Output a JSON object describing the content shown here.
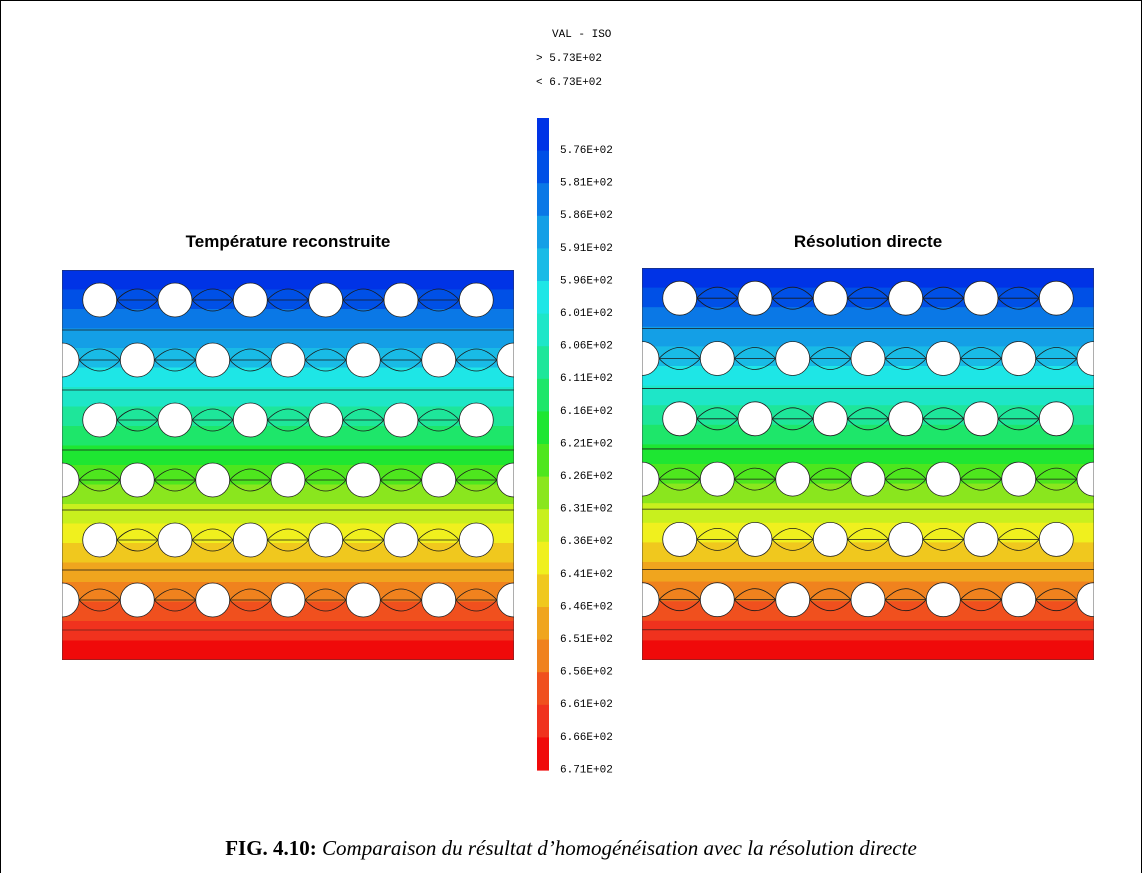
{
  "figure": {
    "left_title": "Température reconstruite",
    "right_title": "Résolution directe",
    "caption_label": "FIG. 4.10:",
    "caption_text": "Comparaison du résultat d’homogénéisation avec la résolution directe"
  },
  "legend": {
    "header": "VAL - ISO",
    "min_line": "> 5.73E+02",
    "max_line": "< 6.73E+02",
    "levels": [
      "5.76E+02",
      "5.81E+02",
      "5.86E+02",
      "5.91E+02",
      "5.96E+02",
      "6.01E+02",
      "6.06E+02",
      "6.11E+02",
      "6.16E+02",
      "6.21E+02",
      "6.26E+02",
      "6.31E+02",
      "6.36E+02",
      "6.41E+02",
      "6.46E+02",
      "6.51E+02",
      "6.56E+02",
      "6.61E+02",
      "6.66E+02",
      "6.71E+02"
    ],
    "colors": [
      "#0033e6",
      "#0050e6",
      "#0a78e6",
      "#149fe6",
      "#19bbe6",
      "#1ee6e6",
      "#1ee6c8",
      "#1ee69a",
      "#1ee66a",
      "#1ee632",
      "#4ee61e",
      "#8ae61e",
      "#c8f01e",
      "#f0f01e",
      "#f0c81e",
      "#f0a51e",
      "#f0821e",
      "#f0501e",
      "#f0321e",
      "#f00a0a"
    ]
  }
}
